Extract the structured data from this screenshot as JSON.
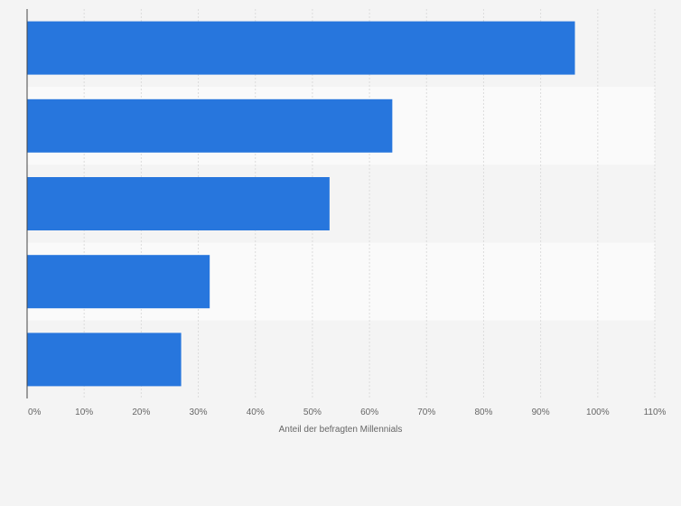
{
  "chart_data": {
    "type": "bar",
    "orientation": "horizontal",
    "categories": [
      "",
      "",
      "",
      "",
      ""
    ],
    "values": [
      96,
      64,
      53,
      32,
      27
    ],
    "xlabel": "Anteil der befragten Millennials",
    "ylabel": "",
    "xlim": [
      0,
      110
    ],
    "ticks": [
      0,
      10,
      20,
      30,
      40,
      50,
      60,
      70,
      80,
      90,
      100,
      110
    ],
    "tick_labels": [
      "0%",
      "10%",
      "20%",
      "30%",
      "40%",
      "50%",
      "60%",
      "70%",
      "80%",
      "90%",
      "100%",
      "110%"
    ],
    "grid": true,
    "legend": "none",
    "bar_color": "#2776dd",
    "stripe_colors": [
      "#f4f4f4",
      "#fafafa"
    ]
  }
}
